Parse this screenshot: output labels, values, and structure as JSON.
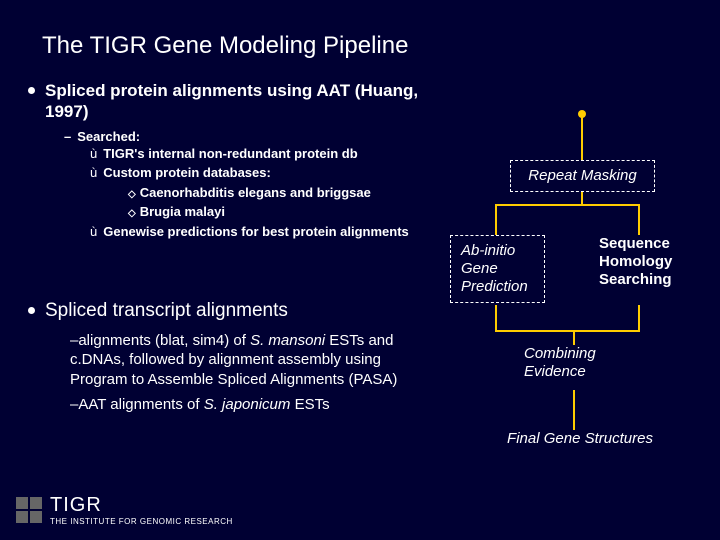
{
  "title": "The TIGR Gene Modeling Pipeline",
  "section1": {
    "heading": "Spliced protein alignments using AAT (Huang, 1997)",
    "searched_label": "Searched:",
    "items": [
      "TIGR's internal non-redundant protein db",
      "Custom protein databases:"
    ],
    "custom_db": [
      "Caenorhabditis elegans and briggsae",
      "Brugia malayi"
    ],
    "last_item": "Genewise predictions for best protein alignments"
  },
  "section2": {
    "heading": "Spliced transcript alignments",
    "para1_prefix": "–alignments (blat, sim4) of ",
    "para1_italic": "S. mansoni",
    "para1_suffix": " ESTs and c.DNAs, followed by alignment assembly using Program to Assemble Spliced Alignments (PASA)",
    "para2_prefix": "–AAT alignments of ",
    "para2_italic": "S. japonicum",
    "para2_suffix": " ESTs"
  },
  "flow": {
    "nodes": {
      "repeat": "Repeat Masking",
      "abinitio": "Ab-initio Gene Prediction",
      "homology": "Sequence Homology Searching",
      "combining": "Combining Evidence",
      "final": "Final Gene Structures"
    },
    "colors": {
      "line": "#ffcc00",
      "border": "#ffffff",
      "background": "#000033",
      "text": "#ffffff"
    }
  },
  "footer": {
    "main": "TIGR",
    "sub": "THE INSTITUTE FOR GENOMIC RESEARCH"
  }
}
